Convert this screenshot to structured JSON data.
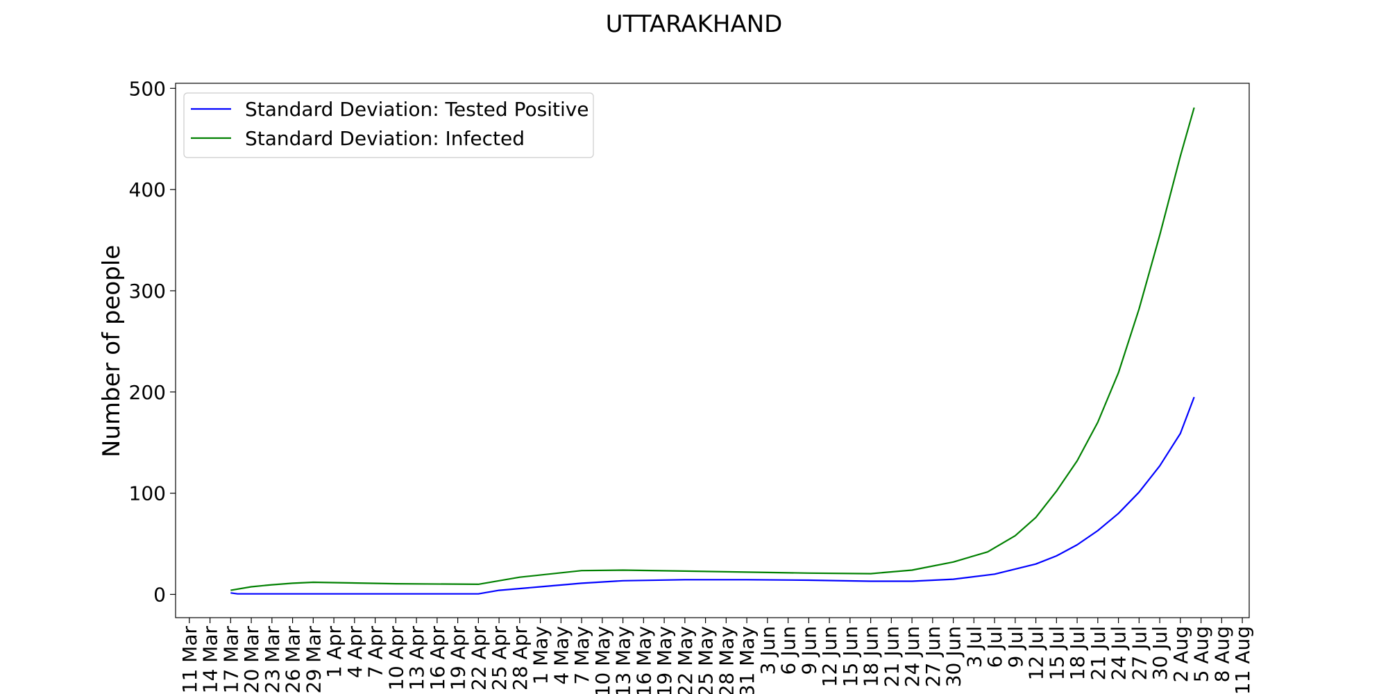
{
  "chart_data": {
    "type": "line",
    "title": "UTTARAKHAND",
    "xlabel": "",
    "ylabel": "Number of people",
    "x_ticks": [
      "11 Mar",
      "14 Mar",
      "17 Mar",
      "20 Mar",
      "23 Mar",
      "26 Mar",
      "29 Mar",
      "1 Apr",
      "4 Apr",
      "7 Apr",
      "10 Apr",
      "13 Apr",
      "16 Apr",
      "19 Apr",
      "22 Apr",
      "25 Apr",
      "28 Apr",
      "1 May",
      "4 May",
      "7 May",
      "10 May",
      "13 May",
      "16 May",
      "19 May",
      "22 May",
      "25 May",
      "28 May",
      "31 May",
      "3 Jun",
      "6 Jun",
      "9 Jun",
      "12 Jun",
      "15 Jun",
      "18 Jun",
      "21 Jun",
      "24 Jun",
      "27 Jun",
      "30 Jun",
      "3 Jul",
      "6 Jul",
      "9 Jul",
      "12 Jul",
      "15 Jul",
      "18 Jul",
      "21 Jul",
      "24 Jul",
      "27 Jul",
      "30 Jul",
      "2 Aug",
      "5 Aug",
      "8 Aug",
      "11 Aug"
    ],
    "y_ticks": [
      0,
      100,
      200,
      300,
      400,
      500
    ],
    "ylim": [
      -23,
      505
    ],
    "xlim": [
      "9 Mar",
      "12 Aug"
    ],
    "grid": false,
    "legend_position": "top-left",
    "series": [
      {
        "name": "Standard Deviation: Tested Positive",
        "color": "#0000ff",
        "x": [
          "17 Mar",
          "18 Mar",
          "22 Apr",
          "25 Apr",
          "1 May",
          "7 May",
          "13 May",
          "22 May",
          "31 May",
          "9 Jun",
          "18 Jun",
          "24 Jun",
          "30 Jun",
          "6 Jul",
          "12 Jul",
          "15 Jul",
          "18 Jul",
          "21 Jul",
          "24 Jul",
          "27 Jul",
          "30 Jul",
          "2 Aug",
          "4 Aug"
        ],
        "values": [
          1.5,
          0.5,
          0.5,
          4,
          7.5,
          11,
          13.5,
          14.5,
          14.5,
          14,
          13,
          13,
          15,
          20,
          30,
          38,
          49,
          63,
          80,
          101,
          127,
          159,
          195
        ]
      },
      {
        "name": "Standard Deviation: Infected",
        "color": "#008000",
        "x": [
          "17 Mar",
          "20 Mar",
          "23 Mar",
          "26 Mar",
          "29 Mar",
          "10 Apr",
          "22 Apr",
          "28 Apr",
          "7 May",
          "13 May",
          "22 May",
          "31 May",
          "9 Jun",
          "18 Jun",
          "24 Jun",
          "30 Jun",
          "5 Jul",
          "9 Jul",
          "12 Jul",
          "15 Jul",
          "18 Jul",
          "21 Jul",
          "24 Jul",
          "27 Jul",
          "30 Jul",
          "2 Aug",
          "4 Aug"
        ],
        "values": [
          4,
          7.5,
          9.5,
          11,
          12,
          10.5,
          10,
          17,
          23.5,
          24,
          23,
          22,
          21,
          20.5,
          24,
          32,
          42,
          58,
          76,
          102,
          132,
          170,
          219,
          282,
          355,
          433,
          481
        ]
      }
    ]
  }
}
